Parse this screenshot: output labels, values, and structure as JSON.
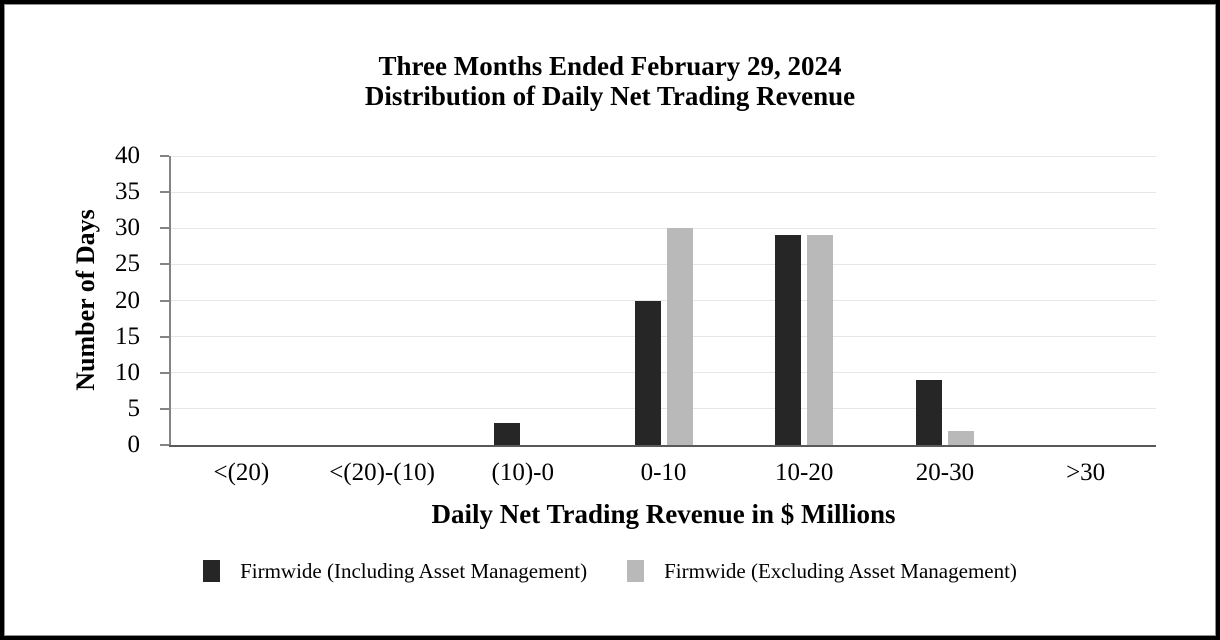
{
  "chart_data": {
    "type": "bar",
    "title_lines": [
      "Three Months Ended February 29, 2024",
      "Distribution of Daily Net Trading Revenue"
    ],
    "title": "Three Months Ended February 29, 2024 Distribution of Daily Net Trading Revenue",
    "xlabel": "Daily Net Trading Revenue in $ Millions",
    "ylabel": "Number of Days",
    "categories": [
      "<(20)",
      "<(20)-(10)",
      "(10)-0",
      "0-10",
      "10-20",
      "20-30",
      ">30"
    ],
    "series": [
      {
        "name": "Firmwide (Including Asset Management)",
        "color": "#262626",
        "values": [
          0,
          0,
          3,
          20,
          29,
          9,
          0
        ]
      },
      {
        "name": "Firmwide (Excluding Asset Management)",
        "color": "#b9b9b9",
        "values": [
          0,
          0,
          0,
          30,
          29,
          2,
          0
        ]
      }
    ],
    "ylim": [
      0,
      40
    ],
    "yticks": [
      0,
      5,
      10,
      15,
      20,
      25,
      30,
      35,
      40
    ],
    "grid": true,
    "legend_position": "bottom",
    "colors": {
      "gridline": "#e7e7e7",
      "axis": "#848484",
      "baseline": "#595959",
      "border": "#000000",
      "inner_border": "#8f8f8f"
    }
  }
}
